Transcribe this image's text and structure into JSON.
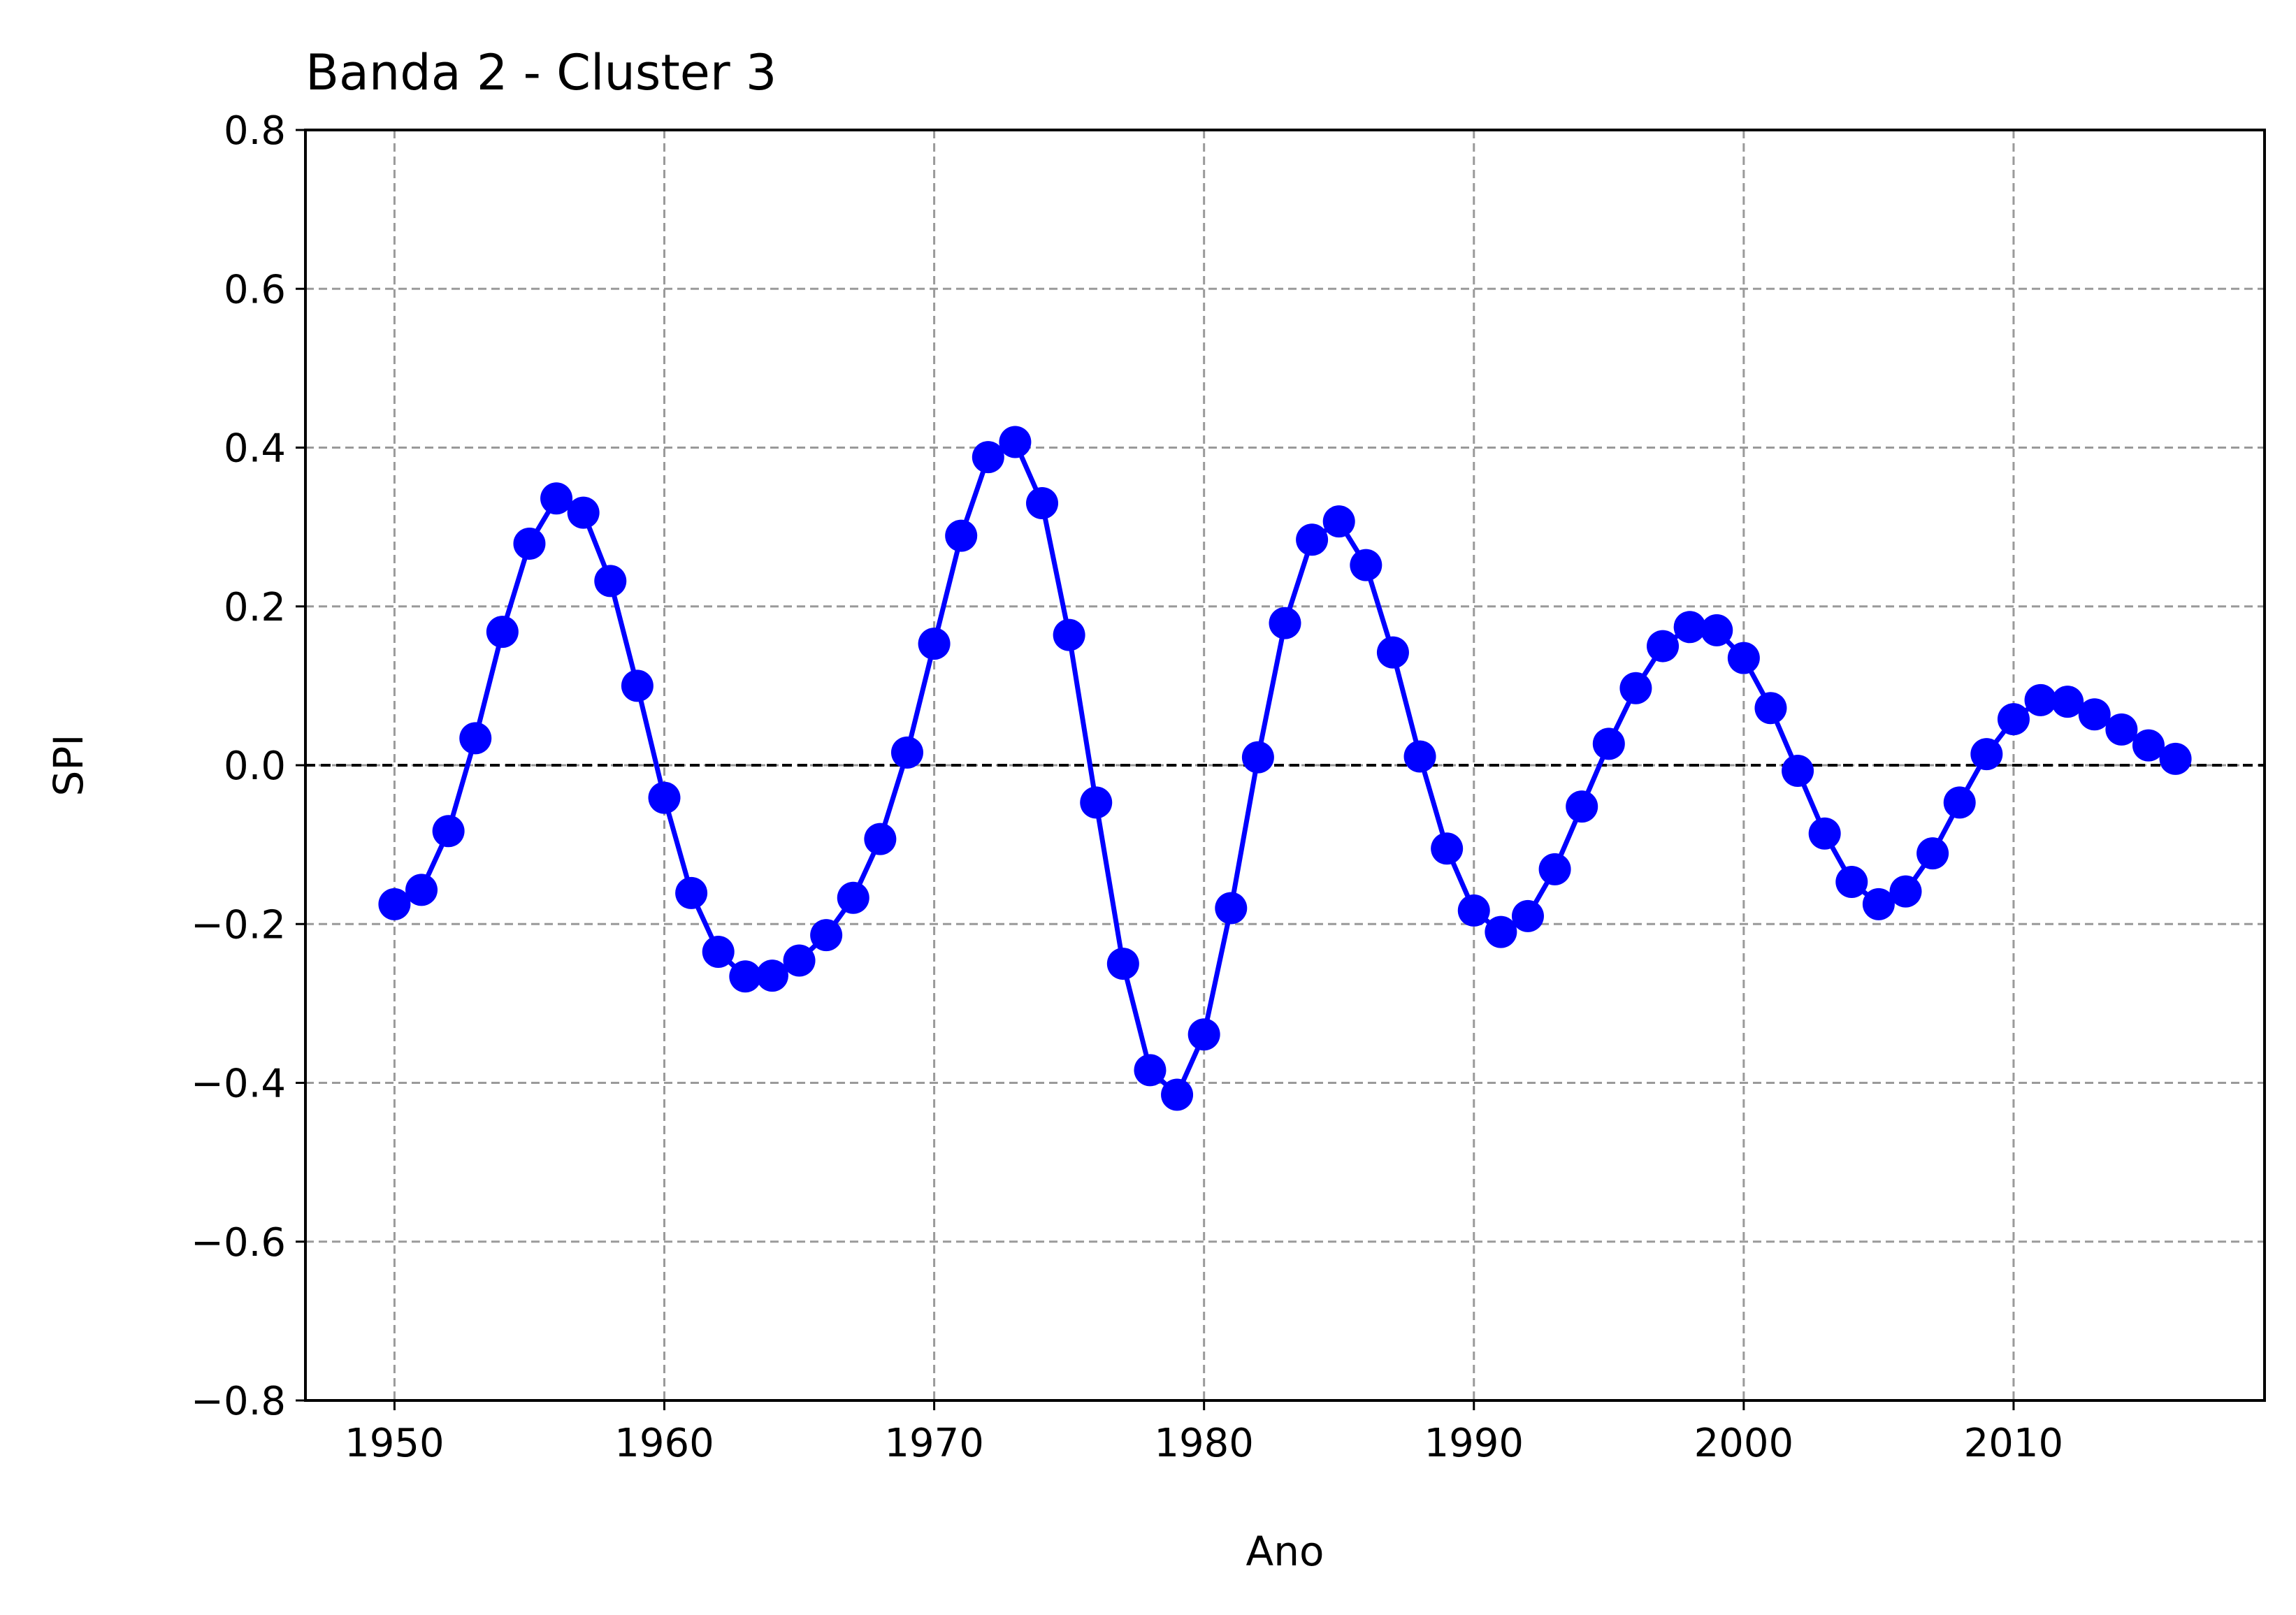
{
  "chart_data": {
    "type": "line",
    "title": "Banda 2 - Cluster 3",
    "xlabel": "Ano",
    "ylabel": "SPI",
    "xlim": [
      1946.7,
      2019.3
    ],
    "ylim": [
      -0.8,
      0.8
    ],
    "xticks": [
      1950,
      1960,
      1970,
      1980,
      1990,
      2000,
      2010
    ],
    "xtick_labels": [
      "1950",
      "1960",
      "1970",
      "1980",
      "1990",
      "2000",
      "2010"
    ],
    "yticks": [
      -0.8,
      -0.6,
      -0.4,
      -0.2,
      0.0,
      0.2,
      0.4,
      0.6,
      0.8
    ],
    "ytick_labels": [
      "−0.8",
      "−0.6",
      "−0.4",
      "−0.2",
      "0.0",
      "0.2",
      "0.4",
      "0.6",
      "0.8"
    ],
    "grid": true,
    "reference_line": 0.0,
    "series": [
      {
        "color": "#0000ff",
        "marker": "circle",
        "x": [
          1950,
          1951,
          1952,
          1953,
          1954,
          1955,
          1956,
          1957,
          1958,
          1959,
          1960,
          1961,
          1962,
          1963,
          1964,
          1965,
          1966,
          1967,
          1968,
          1969,
          1970,
          1971,
          1972,
          1973,
          1974,
          1975,
          1976,
          1977,
          1978,
          1979,
          1980,
          1981,
          1982,
          1983,
          1984,
          1985,
          1986,
          1987,
          1988,
          1989,
          1990,
          1991,
          1992,
          1993,
          1994,
          1995,
          1996,
          1997,
          1998,
          1999,
          2000,
          2001,
          2002,
          2003,
          2004,
          2005,
          2006,
          2007,
          2008,
          2009,
          2010,
          2011,
          2012,
          2013,
          2014,
          2015,
          2016
        ],
        "values": [
          -0.175,
          -0.157,
          -0.083,
          0.034,
          0.168,
          0.279,
          0.336,
          0.318,
          0.232,
          0.1,
          -0.041,
          -0.161,
          -0.235,
          -0.266,
          -0.265,
          -0.246,
          -0.214,
          -0.167,
          -0.093,
          0.016,
          0.153,
          0.289,
          0.388,
          0.407,
          0.33,
          0.164,
          -0.047,
          -0.25,
          -0.384,
          -0.415,
          -0.339,
          -0.18,
          0.01,
          0.179,
          0.284,
          0.307,
          0.252,
          0.142,
          0.011,
          -0.105,
          -0.183,
          -0.21,
          -0.19,
          -0.131,
          -0.052,
          0.027,
          0.097,
          0.15,
          0.174,
          0.17,
          0.135,
          0.072,
          -0.007,
          -0.086,
          -0.147,
          -0.175,
          -0.159,
          -0.111,
          -0.047,
          0.014,
          0.058,
          0.082,
          0.08,
          0.064,
          0.045,
          0.025,
          0.008
        ]
      }
    ]
  }
}
